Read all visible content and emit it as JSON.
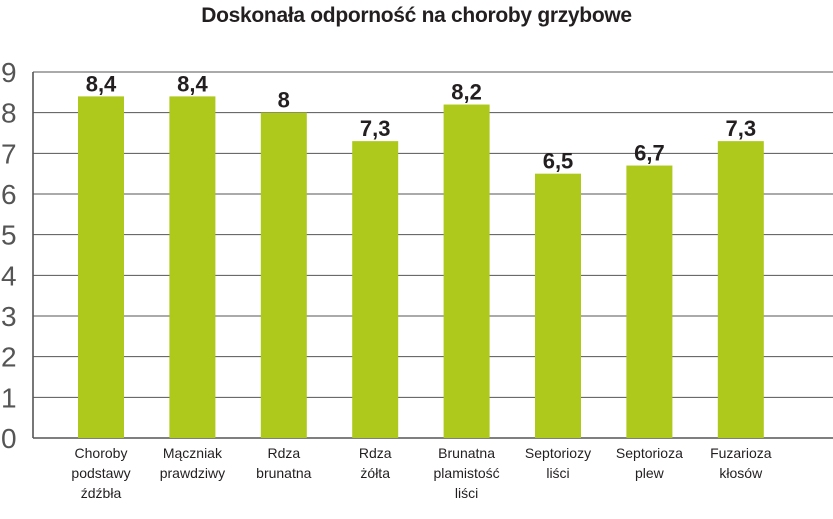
{
  "chart_data": {
    "type": "bar",
    "title": "Doskonała odporność na choroby grzybowe",
    "xlabel": "",
    "ylabel": "",
    "ylim": [
      0,
      9
    ],
    "yticks": [
      "0",
      "1",
      "2",
      "3",
      "4",
      "5",
      "6",
      "7",
      "8",
      "9"
    ],
    "grid": true,
    "categories": [
      "Choroby podstawy źdźbła",
      "Mączniak prawdziwy",
      "Rdza brunatna",
      "Rdza żółta",
      "Brunatna plamistość liści",
      "Septoriozy liści",
      "Septorioza plew",
      "Fuzarioza kłosów"
    ],
    "category_lines": [
      [
        "Choroby",
        "podstawy",
        "źdźbła"
      ],
      [
        "Mączniak",
        "prawdziwy"
      ],
      [
        "Rdza",
        "brunatna"
      ],
      [
        "Rdza",
        "żółta"
      ],
      [
        "Brunatna",
        "plamistość",
        "liści"
      ],
      [
        "Septoriozy",
        "liści"
      ],
      [
        "Septorioza",
        "plew"
      ],
      [
        "Fuzarioza",
        "kłosów"
      ]
    ],
    "values": [
      8.4,
      8.4,
      8,
      7.3,
      8.2,
      6.5,
      6.7,
      7.3
    ],
    "data_labels": [
      "8,4",
      "8,4",
      "8",
      "7,3",
      "8,2",
      "6,5",
      "6,7",
      "7,3"
    ],
    "colors": {
      "bar": "#aec91c",
      "grid": "#555555",
      "axis": "#555555",
      "text": "#231f20"
    }
  }
}
